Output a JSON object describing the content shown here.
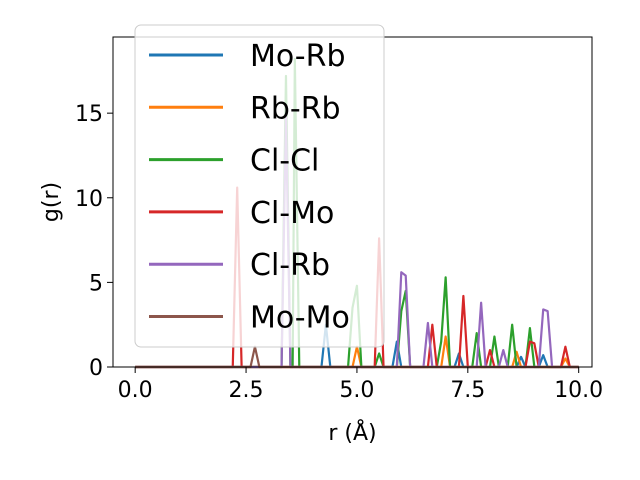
{
  "chart_data": {
    "type": "line",
    "xlabel": "r (Å)",
    "ylabel": "g(r)",
    "xlim": [
      -0.5,
      10.3
    ],
    "ylim": [
      0,
      19.5
    ],
    "xticks": [
      "0.0",
      "2.5",
      "5.0",
      "7.5",
      "10.0"
    ],
    "xtick_values": [
      0,
      2.5,
      5,
      7.5,
      10
    ],
    "yticks": [
      "0",
      "5",
      "10",
      "15"
    ],
    "ytick_values": [
      0,
      5,
      10,
      15
    ],
    "grid": false,
    "legend_position": "upper-left",
    "series": [
      {
        "name": "Mo-Rb",
        "color": "#1f77b4",
        "points": [
          [
            0,
            0
          ],
          [
            4.2,
            0
          ],
          [
            4.3,
            2.5
          ],
          [
            4.4,
            0
          ],
          [
            5.8,
            0
          ],
          [
            5.9,
            1.5
          ],
          [
            6.0,
            0
          ],
          [
            7.2,
            0
          ],
          [
            7.3,
            0.8
          ],
          [
            7.4,
            0
          ],
          [
            8.6,
            0
          ],
          [
            8.7,
            0.6
          ],
          [
            8.8,
            0
          ],
          [
            9.1,
            0
          ],
          [
            9.2,
            0.7
          ],
          [
            9.3,
            0
          ],
          [
            10.0,
            0
          ]
        ]
      },
      {
        "name": "Rb-Rb",
        "color": "#ff7f0e",
        "points": [
          [
            0,
            0
          ],
          [
            4.9,
            0
          ],
          [
            5.0,
            1.2
          ],
          [
            5.1,
            0
          ],
          [
            6.9,
            0
          ],
          [
            7.0,
            1.8
          ],
          [
            7.1,
            0
          ],
          [
            8.5,
            0
          ],
          [
            8.6,
            0.9
          ],
          [
            8.7,
            0
          ],
          [
            9.6,
            0
          ],
          [
            9.7,
            0.5
          ],
          [
            9.8,
            0
          ],
          [
            10.0,
            0
          ]
        ]
      },
      {
        "name": "Cl-Cl",
        "color": "#2ca02c",
        "points": [
          [
            0,
            0
          ],
          [
            3.3,
            0
          ],
          [
            3.4,
            17.2
          ],
          [
            3.5,
            0
          ],
          [
            3.55,
            0
          ],
          [
            3.6,
            18.2
          ],
          [
            3.7,
            0
          ],
          [
            4.8,
            0
          ],
          [
            4.9,
            3.5
          ],
          [
            5.0,
            4.8
          ],
          [
            5.1,
            0
          ],
          [
            5.4,
            0
          ],
          [
            5.5,
            0.8
          ],
          [
            5.6,
            0
          ],
          [
            5.9,
            0
          ],
          [
            6.0,
            3.3
          ],
          [
            6.1,
            4.5
          ],
          [
            6.2,
            0
          ],
          [
            6.8,
            0
          ],
          [
            6.9,
            1.5
          ],
          [
            7.0,
            5.3
          ],
          [
            7.1,
            0
          ],
          [
            7.6,
            0
          ],
          [
            7.7,
            2.0
          ],
          [
            7.8,
            0
          ],
          [
            8.0,
            0
          ],
          [
            8.1,
            1.8
          ],
          [
            8.2,
            0
          ],
          [
            8.4,
            0
          ],
          [
            8.5,
            2.5
          ],
          [
            8.6,
            0
          ],
          [
            8.8,
            0
          ],
          [
            8.9,
            2.3
          ],
          [
            9.0,
            0
          ],
          [
            10.0,
            0
          ]
        ]
      },
      {
        "name": "Cl-Mo",
        "color": "#d62728",
        "points": [
          [
            0,
            0
          ],
          [
            2.2,
            0
          ],
          [
            2.3,
            10.6
          ],
          [
            2.4,
            0
          ],
          [
            5.4,
            0
          ],
          [
            5.5,
            7.6
          ],
          [
            5.6,
            0
          ],
          [
            6.6,
            0
          ],
          [
            6.7,
            2.5
          ],
          [
            6.8,
            0
          ],
          [
            7.3,
            0
          ],
          [
            7.4,
            4.2
          ],
          [
            7.5,
            0
          ],
          [
            7.9,
            0
          ],
          [
            8.0,
            1.0
          ],
          [
            8.1,
            0
          ],
          [
            8.8,
            0
          ],
          [
            8.9,
            1.5
          ],
          [
            9.0,
            1.4
          ],
          [
            9.1,
            0
          ],
          [
            9.6,
            0
          ],
          [
            9.7,
            1.2
          ],
          [
            9.8,
            0
          ],
          [
            10.0,
            0
          ]
        ]
      },
      {
        "name": "Cl-Rb",
        "color": "#9467bd",
        "points": [
          [
            0,
            0
          ],
          [
            3.3,
            0
          ],
          [
            3.4,
            14.8
          ],
          [
            3.5,
            0
          ],
          [
            5.9,
            0
          ],
          [
            6.0,
            5.6
          ],
          [
            6.1,
            5.4
          ],
          [
            6.2,
            0
          ],
          [
            6.5,
            0
          ],
          [
            6.6,
            2.6
          ],
          [
            6.7,
            0
          ],
          [
            7.7,
            0
          ],
          [
            7.8,
            3.8
          ],
          [
            7.9,
            0
          ],
          [
            8.2,
            0
          ],
          [
            8.3,
            1.0
          ],
          [
            8.4,
            0
          ],
          [
            9.1,
            0
          ],
          [
            9.2,
            3.4
          ],
          [
            9.3,
            3.3
          ],
          [
            9.4,
            0
          ],
          [
            10.0,
            0
          ]
        ]
      },
      {
        "name": "Mo-Mo",
        "color": "#8c564b",
        "points": [
          [
            0,
            0
          ],
          [
            2.6,
            0
          ],
          [
            2.7,
            1.2
          ],
          [
            2.8,
            0
          ],
          [
            10.0,
            0
          ]
        ]
      }
    ]
  }
}
